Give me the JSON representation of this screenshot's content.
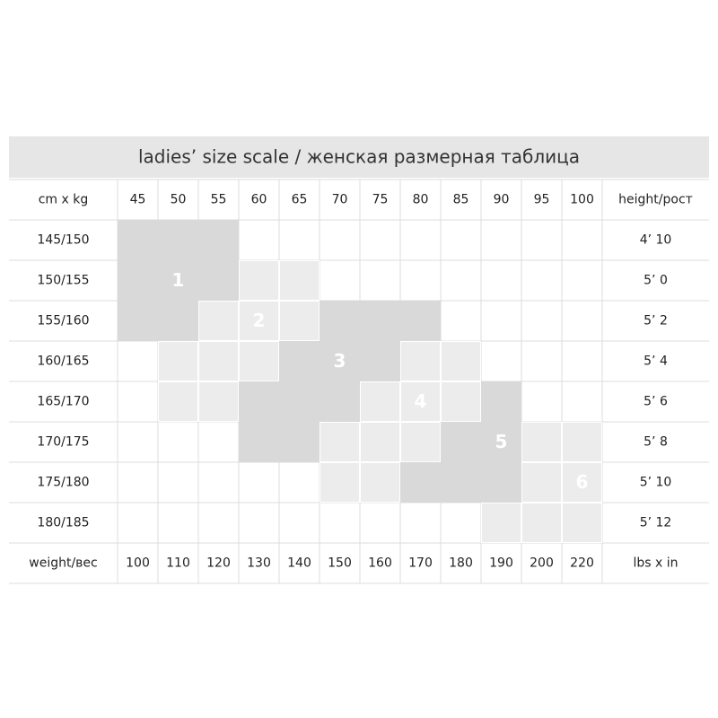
{
  "title": "ladies’ size scale / женская размерная таблица",
  "header": [
    "cm x kg",
    "45",
    "50",
    "55",
    "60",
    "65",
    "70",
    "75",
    "80",
    "85",
    "90",
    "95",
    "100",
    "height/рост"
  ],
  "rows": [
    {
      "label": "145/150",
      "height": "4’ 10"
    },
    {
      "label": "150/155",
      "height": "5’ 0"
    },
    {
      "label": "155/160",
      "height": "5’ 2"
    },
    {
      "label": "160/165",
      "height": "5’ 4"
    },
    {
      "label": "165/170",
      "height": "5’ 6"
    },
    {
      "label": "170/175",
      "height": "5’ 8"
    },
    {
      "label": "175/180",
      "height": "5’ 10"
    },
    {
      "label": "180/185",
      "height": "5’ 12"
    }
  ],
  "footer": [
    "weight/вес",
    "100",
    "110",
    "120",
    "130",
    "140",
    "150",
    "160",
    "170",
    "180",
    "190",
    "200",
    "220",
    "lbs x in"
  ],
  "sizes": [
    "1",
    "2",
    "3",
    "4",
    "5",
    "6"
  ]
}
